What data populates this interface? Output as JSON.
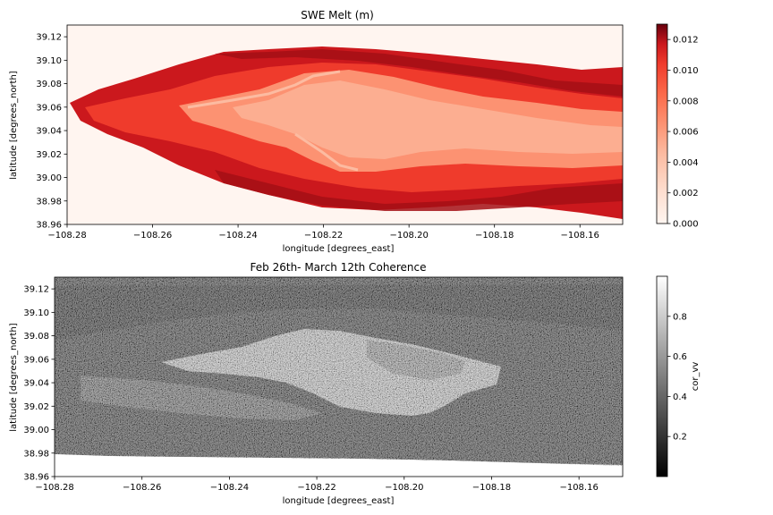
{
  "chart_data": [
    {
      "type": "heatmap",
      "title": "SWE Melt (m)",
      "xlabel": "longitude [degrees_east]",
      "ylabel": "latitude [degrees_north]",
      "xlim": [
        -108.28,
        -108.15
      ],
      "ylim": [
        38.96,
        39.13
      ],
      "xticks": [
        -108.28,
        -108.26,
        -108.24,
        -108.22,
        -108.2,
        -108.18,
        -108.16
      ],
      "xtick_labels": [
        "−108.28",
        "−108.26",
        "−108.24",
        "−108.22",
        "−108.20",
        "−108.18",
        "−108.16"
      ],
      "yticks": [
        38.96,
        38.98,
        39.0,
        39.02,
        39.04,
        39.06,
        39.08,
        39.1,
        39.12
      ],
      "ytick_labels": [
        "38.96",
        "38.98",
        "39.00",
        "39.02",
        "39.04",
        "39.06",
        "39.08",
        "39.10",
        "39.12"
      ],
      "colormap": "Reds",
      "colorbar": {
        "label": "",
        "vmin": 0.0,
        "vmax": 0.013,
        "ticks": [
          0.0,
          0.002,
          0.004,
          0.006,
          0.008,
          0.01,
          0.012
        ],
        "tick_labels": [
          "0.000",
          "0.002",
          "0.004",
          "0.006",
          "0.008",
          "0.010",
          "0.012"
        ]
      },
      "colors": [
        "#fff5f0",
        "#fcbba1",
        "#fb6a4a",
        "#cb181d",
        "#67000d"
      ]
    },
    {
      "type": "heatmap",
      "title": "Feb 26th- March 12th Coherence",
      "xlabel": "longitude [degrees_east]",
      "ylabel": "latitude [degrees_north]",
      "xlim": [
        -108.28,
        -108.15
      ],
      "ylim": [
        38.96,
        39.13
      ],
      "xticks": [
        -108.28,
        -108.26,
        -108.24,
        -108.22,
        -108.2,
        -108.18,
        -108.16
      ],
      "xtick_labels": [
        "−108.28",
        "−108.26",
        "−108.24",
        "−108.22",
        "−108.20",
        "−108.18",
        "−108.16"
      ],
      "yticks": [
        38.96,
        38.98,
        39.0,
        39.02,
        39.04,
        39.06,
        39.08,
        39.1,
        39.12
      ],
      "ytick_labels": [
        "38.96",
        "38.98",
        "39.00",
        "39.02",
        "39.04",
        "39.06",
        "39.08",
        "39.10",
        "39.12"
      ],
      "colormap": "gray",
      "colorbar": {
        "label": "cor_vv",
        "vmin": 0.0,
        "vmax": 1.0,
        "ticks": [
          0.2,
          0.4,
          0.6,
          0.8
        ],
        "tick_labels": [
          "0.2",
          "0.4",
          "0.6",
          "0.8"
        ]
      },
      "colors": [
        "#000000",
        "#ffffff"
      ]
    }
  ]
}
